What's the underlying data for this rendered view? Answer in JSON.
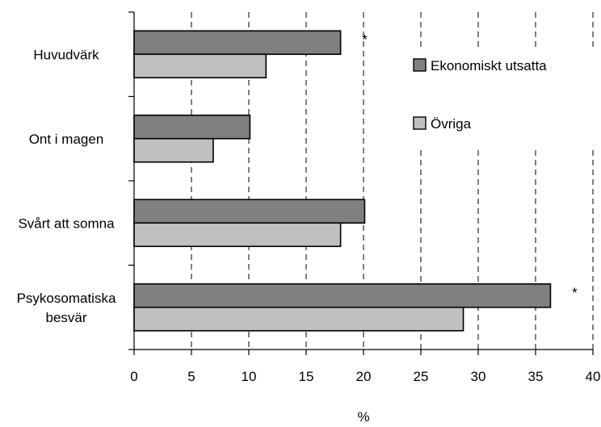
{
  "chart_data": {
    "type": "bar",
    "orientation": "horizontal",
    "categories": [
      [
        "Huvudvärk"
      ],
      [
        "Ont i magen"
      ],
      [
        "Svårt att somna"
      ],
      [
        "Psykosomatiska",
        "besvär"
      ]
    ],
    "series": [
      {
        "name": "Ekonomiskt utsatta",
        "values": [
          18,
          10.1,
          20.1,
          36.3
        ],
        "color": "#808080"
      },
      {
        "name": "Övriga",
        "values": [
          11.5,
          6.9,
          18,
          28.7
        ],
        "color": "#c0c0c0"
      }
    ],
    "annotations": [
      {
        "category_index": 0,
        "text": "*"
      },
      {
        "category_index": 3,
        "text": "*"
      }
    ],
    "xlabel": "%",
    "xlim": [
      0,
      40
    ],
    "xticks": [
      0,
      5,
      10,
      15,
      20,
      25,
      30,
      35,
      40
    ],
    "grid": "vertical dashed",
    "legend_position": "top-right inside plot"
  }
}
